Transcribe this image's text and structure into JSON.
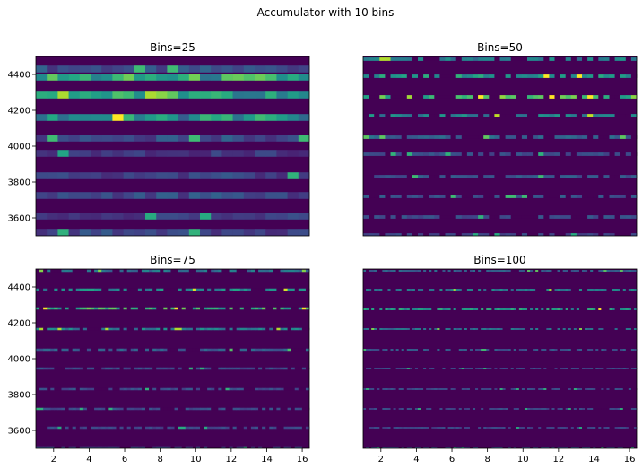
{
  "figure": {
    "suptitle": "Accumulator with 10 bins"
  },
  "chart_data": [
    {
      "type": "heatmap",
      "title": "Bins=25",
      "bins": 25,
      "xlim": [
        1,
        16.4
      ],
      "ylim": [
        3500,
        4500
      ],
      "xticks": [],
      "yticks": [
        3600,
        3800,
        4000,
        4200,
        4400
      ],
      "colormap": "viridis",
      "rows": [
        {
          "y": 4430,
          "base": 0.25
        },
        {
          "y": 4385,
          "base": 0.6
        },
        {
          "y": 4285,
          "base": 0.68
        },
        {
          "y": 4160,
          "base": 0.52
        },
        {
          "y": 4045,
          "base": 0.25
        },
        {
          "y": 3960,
          "base": 0.18
        },
        {
          "y": 3835,
          "base": 0.22
        },
        {
          "y": 3725,
          "base": 0.24
        },
        {
          "y": 3610,
          "base": 0.2
        },
        {
          "y": 3520,
          "base": 0.22
        }
      ]
    },
    {
      "type": "heatmap",
      "title": "Bins=50",
      "bins": 50,
      "xlim": [
        1,
        16.4
      ],
      "ylim": [
        3500,
        4500
      ],
      "xticks": [],
      "yticks": [],
      "colormap": "viridis",
      "rows": [
        {
          "y": 4485,
          "base": 0.4
        },
        {
          "y": 4390,
          "base": 0.5
        },
        {
          "y": 4275,
          "base": 0.65
        },
        {
          "y": 4170,
          "base": 0.42
        },
        {
          "y": 4050,
          "base": 0.3
        },
        {
          "y": 3955,
          "base": 0.22
        },
        {
          "y": 3830,
          "base": 0.25
        },
        {
          "y": 3720,
          "base": 0.25
        },
        {
          "y": 3605,
          "base": 0.22
        },
        {
          "y": 3505,
          "base": 0.2
        }
      ]
    },
    {
      "type": "heatmap",
      "title": "Bins=75",
      "bins": 75,
      "xlim": [
        1,
        16.4
      ],
      "ylim": [
        3500,
        4500
      ],
      "xticks": [
        2,
        4,
        6,
        8,
        10,
        12,
        14,
        16
      ],
      "yticks": [
        3600,
        3800,
        4000,
        4200,
        4400
      ],
      "colormap": "viridis",
      "rows": [
        {
          "y": 4490,
          "base": 0.35
        },
        {
          "y": 4385,
          "base": 0.45
        },
        {
          "y": 4280,
          "base": 0.6
        },
        {
          "y": 4165,
          "base": 0.4
        },
        {
          "y": 4050,
          "base": 0.28
        },
        {
          "y": 3945,
          "base": 0.22
        },
        {
          "y": 3830,
          "base": 0.22
        },
        {
          "y": 3720,
          "base": 0.22
        },
        {
          "y": 3615,
          "base": 0.2
        },
        {
          "y": 3505,
          "base": 0.22
        }
      ]
    },
    {
      "type": "heatmap",
      "title": "Bins=100",
      "bins": 100,
      "xlim": [
        1,
        16.4
      ],
      "ylim": [
        3500,
        4500
      ],
      "xticks": [
        2,
        4,
        6,
        8,
        10,
        12,
        14,
        16
      ],
      "yticks": [],
      "colormap": "viridis",
      "rows": [
        {
          "y": 4490,
          "base": 0.3
        },
        {
          "y": 4385,
          "base": 0.4
        },
        {
          "y": 4275,
          "base": 0.5
        },
        {
          "y": 4165,
          "base": 0.35
        },
        {
          "y": 4050,
          "base": 0.26
        },
        {
          "y": 3945,
          "base": 0.22
        },
        {
          "y": 3830,
          "base": 0.22
        },
        {
          "y": 3720,
          "base": 0.22
        },
        {
          "y": 3615,
          "base": 0.2
        },
        {
          "y": 3505,
          "base": 0.22
        }
      ]
    }
  ]
}
